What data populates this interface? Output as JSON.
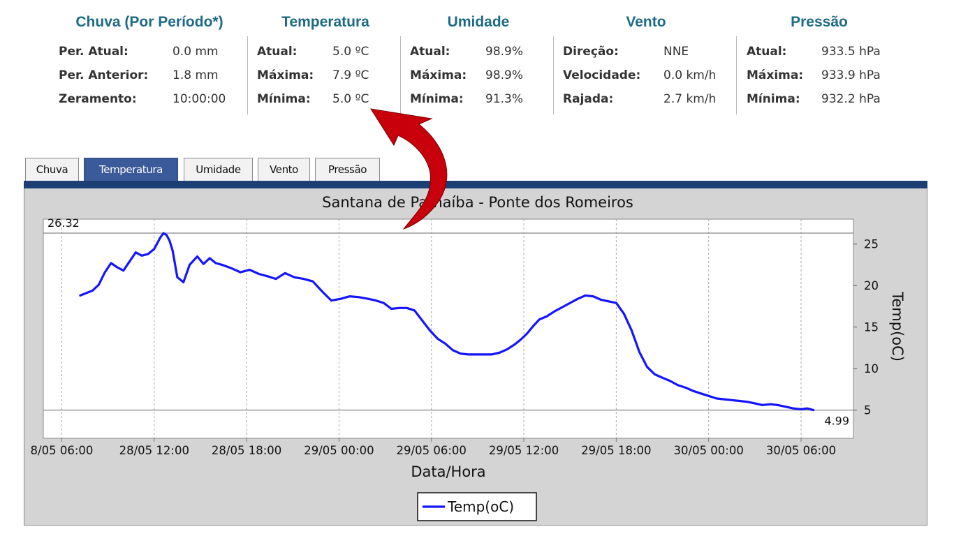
{
  "summary": {
    "chuva": {
      "title": "Chuva (Por Período*)",
      "rows": [
        {
          "label": "Per. Atual:",
          "value": "0.0 mm"
        },
        {
          "label": "Per. Anterior:",
          "value": "1.8 mm"
        },
        {
          "label": "Zeramento:",
          "value": "10:00:00"
        }
      ]
    },
    "temperatura": {
      "title": "Temperatura",
      "rows": [
        {
          "label": "Atual:",
          "value": "5.0 ºC"
        },
        {
          "label": "Máxima:",
          "value": "7.9 ºC"
        },
        {
          "label": "Mínima:",
          "value": "5.0 ºC"
        }
      ]
    },
    "umidade": {
      "title": "Umidade",
      "rows": [
        {
          "label": "Atual:",
          "value": "98.9%"
        },
        {
          "label": "Máxima:",
          "value": "98.9%"
        },
        {
          "label": "Mínima:",
          "value": "91.3%"
        }
      ]
    },
    "vento": {
      "title": "Vento",
      "rows": [
        {
          "label": "Direção:",
          "value": "NNE"
        },
        {
          "label": "Velocidade:",
          "value": "0.0 km/h"
        },
        {
          "label": "Rajada:",
          "value": "2.7 km/h"
        }
      ]
    },
    "pressao": {
      "title": "Pressão",
      "rows": [
        {
          "label": "Atual:",
          "value": "933.5 hPa"
        },
        {
          "label": "Máxima:",
          "value": "933.9 hPa"
        },
        {
          "label": "Mínima:",
          "value": "932.2 hPa"
        }
      ]
    }
  },
  "tabs": [
    "Chuva",
    "Temperatura",
    "Umidade",
    "Vento",
    "Pressão"
  ],
  "active_tab": "Temperatura",
  "colors": {
    "title": "#1d6a86",
    "tab_active": "#3a5a99",
    "panel_bar": "#1e3f74",
    "series": "#1414ff",
    "arrow": "#c8000b"
  },
  "annotation_arrow": "curved-arrow-pointing-to-temperature-minimum",
  "chart_data": {
    "type": "line",
    "title": "Santana de Parnaíba - Ponte dos Romeiros",
    "xlabel": "Data/Hora",
    "ylabel": "Temp(oC)",
    "x_tick_labels": [
      "8/05 06:00",
      "28/05 12:00",
      "28/05 18:00",
      "29/05 00:00",
      "29/05 06:00",
      "29/05 12:00",
      "29/05 18:00",
      "30/05 00:00",
      "30/05 06:00"
    ],
    "x_ticks_hours": [
      0,
      6,
      12,
      18,
      24,
      30,
      36,
      42,
      48
    ],
    "x_range_hours": [
      -1.2,
      51.4
    ],
    "y_ticks": [
      5,
      10,
      15,
      20,
      25
    ],
    "ylim": [
      1.6,
      28.0
    ],
    "y_axis_side": "right",
    "grid": {
      "vertical": true,
      "horizontal": false
    },
    "max_line": {
      "label": "26.32",
      "value": 26.32
    },
    "min_line": {
      "label": "4.99",
      "value": 4.99
    },
    "legend": {
      "position": "bottom-center",
      "entries": [
        "Temp(oC)"
      ]
    },
    "series": [
      {
        "name": "Temp(oC)",
        "x_hours": [
          1.2,
          1.6,
          2.0,
          2.4,
          2.8,
          3.2,
          3.6,
          4.0,
          4.4,
          4.8,
          5.2,
          5.6,
          6.0,
          6.4,
          6.6,
          6.8,
          7.0,
          7.2,
          7.5,
          7.9,
          8.3,
          8.8,
          9.2,
          9.6,
          10.0,
          10.4,
          11.0,
          11.6,
          12.2,
          12.8,
          13.4,
          13.9,
          14.5,
          15.1,
          15.7,
          16.3,
          16.9,
          17.5,
          18.1,
          18.7,
          19.3,
          19.9,
          20.4,
          20.9,
          21.4,
          21.9,
          22.4,
          22.9,
          23.4,
          23.9,
          24.4,
          24.9,
          25.4,
          25.9,
          26.4,
          26.9,
          27.4,
          27.9,
          28.4,
          28.9,
          29.4,
          29.8,
          30.2,
          30.6,
          31.0,
          31.5,
          32.0,
          32.5,
          33.0,
          33.5,
          34.0,
          34.5,
          35.0,
          35.5,
          36.0,
          36.5,
          37.0,
          37.5,
          38.0,
          38.5,
          39.0,
          39.5,
          40.0,
          40.5,
          41.0,
          41.5,
          42.0,
          42.5,
          43.0,
          43.5,
          44.0,
          44.5,
          45.0,
          45.5,
          46.0,
          46.5,
          47.0,
          47.5,
          48.0,
          48.4,
          48.8
        ],
        "y": [
          18.8,
          19.1,
          19.4,
          20.1,
          21.6,
          22.7,
          22.2,
          21.8,
          22.9,
          24.0,
          23.6,
          23.8,
          24.4,
          25.8,
          26.3,
          26.1,
          25.4,
          24.2,
          21.0,
          20.4,
          22.5,
          23.5,
          22.6,
          23.3,
          22.7,
          22.5,
          22.1,
          21.6,
          21.9,
          21.4,
          21.1,
          20.8,
          21.5,
          21.0,
          20.8,
          20.5,
          19.3,
          18.2,
          18.4,
          18.7,
          18.6,
          18.4,
          18.2,
          17.9,
          17.2,
          17.3,
          17.3,
          17.0,
          15.8,
          14.6,
          13.6,
          13.0,
          12.2,
          11.8,
          11.7,
          11.7,
          11.7,
          11.7,
          11.9,
          12.3,
          12.9,
          13.5,
          14.2,
          15.1,
          15.9,
          16.3,
          16.9,
          17.4,
          17.9,
          18.4,
          18.8,
          18.7,
          18.3,
          18.1,
          17.9,
          16.6,
          14.6,
          12.0,
          10.2,
          9.3,
          8.9,
          8.5,
          8.0,
          7.7,
          7.3,
          7.0,
          6.7,
          6.4,
          6.3,
          6.2,
          6.1,
          6.0,
          5.8,
          5.6,
          5.7,
          5.6,
          5.4,
          5.2,
          5.1,
          5.2,
          5.0
        ]
      }
    ]
  }
}
